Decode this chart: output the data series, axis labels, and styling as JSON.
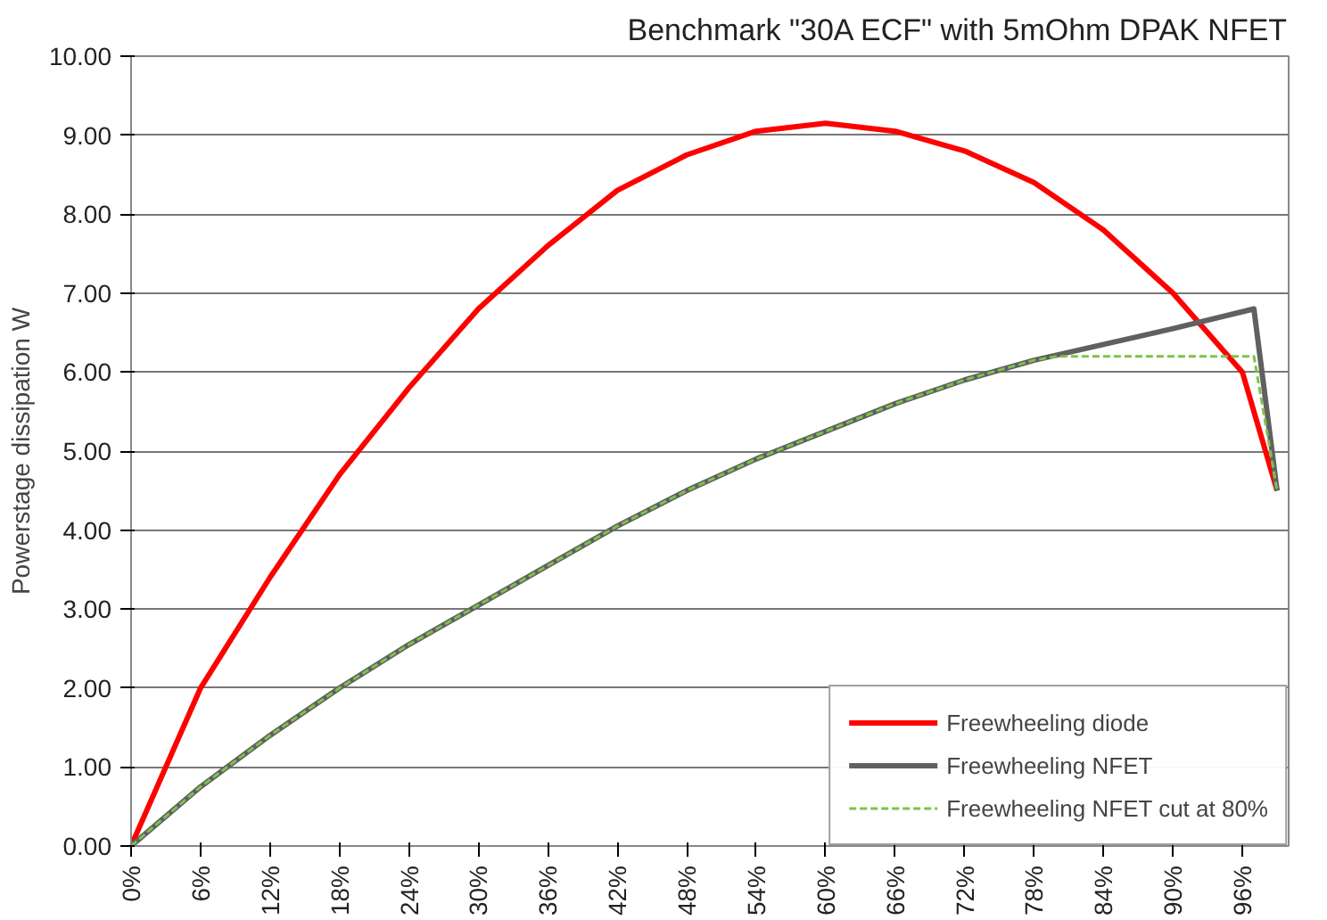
{
  "chart_data": {
    "type": "line",
    "title": "Benchmark \"30A ECF\" with 5mOhm DPAK NFET",
    "ylabel": "Powerstage dissipation W",
    "xlim": [
      0,
      100
    ],
    "ylim": [
      0,
      10
    ],
    "xticks": [
      {
        "value": 0,
        "label": "0%"
      },
      {
        "value": 6,
        "label": "6%"
      },
      {
        "value": 12,
        "label": "12%"
      },
      {
        "value": 18,
        "label": "18%"
      },
      {
        "value": 24,
        "label": "24%"
      },
      {
        "value": 30,
        "label": "30%"
      },
      {
        "value": 36,
        "label": "36%"
      },
      {
        "value": 42,
        "label": "42%"
      },
      {
        "value": 48,
        "label": "48%"
      },
      {
        "value": 54,
        "label": "54%"
      },
      {
        "value": 60,
        "label": "60%"
      },
      {
        "value": 66,
        "label": "66%"
      },
      {
        "value": 72,
        "label": "72%"
      },
      {
        "value": 78,
        "label": "78%"
      },
      {
        "value": 84,
        "label": "84%"
      },
      {
        "value": 90,
        "label": "90%"
      },
      {
        "value": 96,
        "label": "96%"
      }
    ],
    "yticks": [
      {
        "value": 0,
        "label": "0.00"
      },
      {
        "value": 1,
        "label": "1.00"
      },
      {
        "value": 2,
        "label": "2.00"
      },
      {
        "value": 3,
        "label": "3.00"
      },
      {
        "value": 4,
        "label": "4.00"
      },
      {
        "value": 5,
        "label": "5.00"
      },
      {
        "value": 6,
        "label": "6.00"
      },
      {
        "value": 7,
        "label": "7.00"
      },
      {
        "value": 8,
        "label": "8.00"
      },
      {
        "value": 9,
        "label": "9.00"
      },
      {
        "value": 10,
        "label": "10.00"
      }
    ],
    "grid": "y",
    "legend": "bottom right",
    "marker": "none",
    "series": [
      {
        "name": "Freewheeling diode",
        "color": "#ff0000",
        "line_style": "solid",
        "x": [
          0,
          6,
          12,
          18,
          24,
          30,
          36,
          42,
          48,
          54,
          60,
          66,
          72,
          78,
          84,
          90,
          96,
          99
        ],
        "values": [
          0,
          2.0,
          3.4,
          4.7,
          5.8,
          6.8,
          7.6,
          8.3,
          8.75,
          9.05,
          9.15,
          9.05,
          8.8,
          8.4,
          7.8,
          7.0,
          6.0,
          4.5
        ]
      },
      {
        "name": "Freewheeling NFET",
        "color": "#606060",
        "line_style": "solid",
        "x": [
          0,
          6,
          12,
          18,
          24,
          30,
          36,
          42,
          48,
          54,
          60,
          66,
          72,
          78,
          84,
          90,
          97,
          99
        ],
        "values": [
          0,
          0.75,
          1.4,
          2.0,
          2.55,
          3.05,
          3.55,
          4.05,
          4.5,
          4.9,
          5.25,
          5.6,
          5.9,
          6.15,
          6.35,
          6.55,
          6.8,
          4.5
        ]
      },
      {
        "name": "Freewheeling NFET cut at 80%",
        "color": "#7dc24b",
        "line_style": "dashed",
        "x": [
          0,
          6,
          12,
          18,
          24,
          30,
          36,
          42,
          48,
          54,
          60,
          66,
          72,
          78,
          80,
          97,
          99
        ],
        "values": [
          0,
          0.75,
          1.4,
          2.0,
          2.55,
          3.05,
          3.55,
          4.05,
          4.5,
          4.9,
          5.25,
          5.6,
          5.9,
          6.15,
          6.2,
          6.2,
          4.5
        ]
      }
    ]
  }
}
